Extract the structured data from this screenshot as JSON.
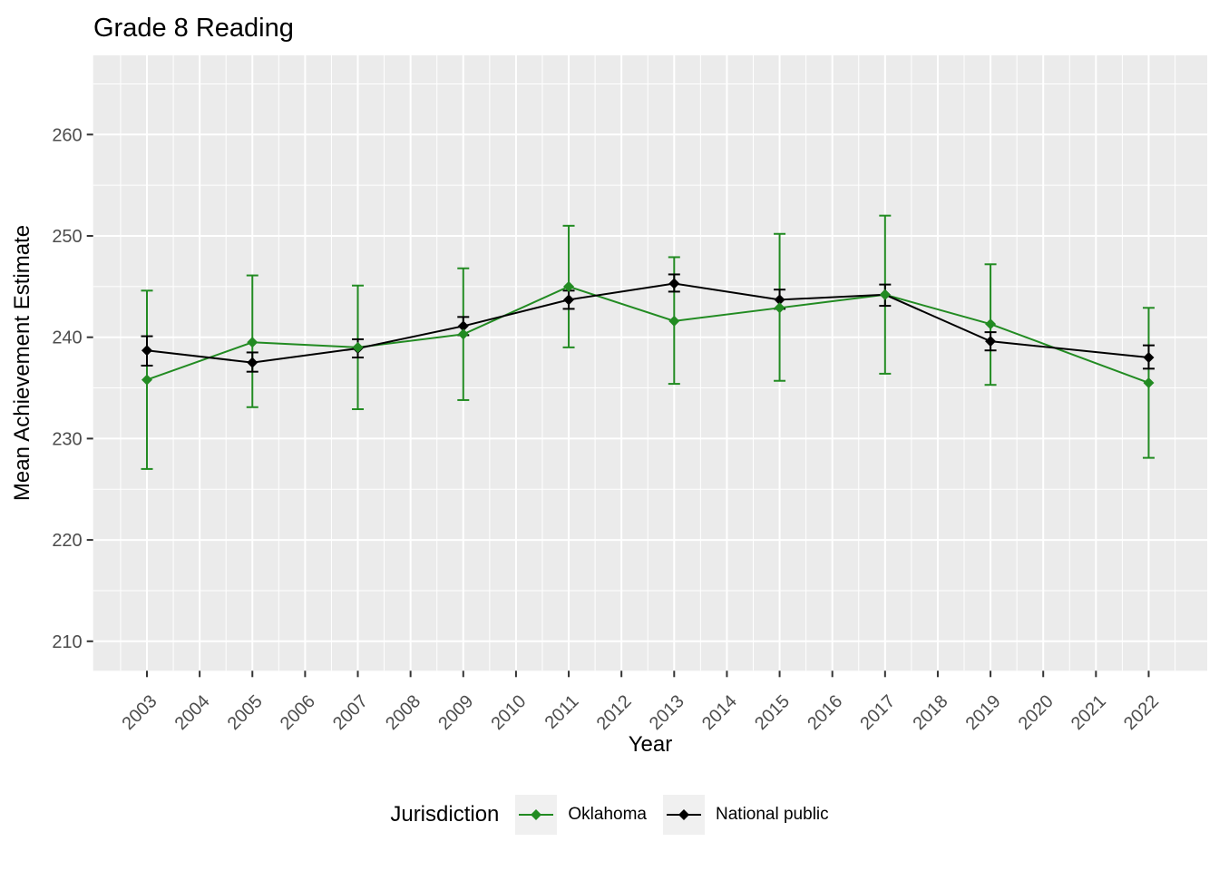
{
  "colors": {
    "oklahoma": "#228B22",
    "national": "#000000",
    "panel_bg": "#EBEBEB",
    "gridline": "#FFFFFF",
    "tick_text": "#4D4D4D",
    "tick_mark": "#333333",
    "legend_key_bg": "#F0F0F0"
  },
  "chart_data": {
    "type": "line",
    "title": "Grade 8 Reading",
    "xlabel": "Year",
    "ylabel": "Mean Achievement Estimate",
    "legend_title": "Jurisdiction",
    "legend_position": "bottom",
    "grid": true,
    "error_bars": true,
    "x_range": [
      2002,
      2023.1
    ],
    "y_range": [
      207,
      268
    ],
    "x_tick_values": [
      2003,
      2004,
      2005,
      2006,
      2007,
      2008,
      2009,
      2010,
      2011,
      2012,
      2013,
      2014,
      2015,
      2016,
      2017,
      2018,
      2019,
      2020,
      2021,
      2022
    ],
    "x_tick_labels": [
      "2003",
      "2004",
      "2005",
      "2006",
      "2007",
      "2008",
      "2009",
      "2010",
      "2011",
      "2012",
      "2013",
      "2014",
      "2015",
      "2016",
      "2017",
      "2018",
      "2019",
      "2020",
      "2021",
      "2022"
    ],
    "y_tick_values": [
      210,
      220,
      230,
      240,
      250,
      260
    ],
    "y_tick_labels": [
      "210",
      "220",
      "230",
      "240",
      "250",
      "260"
    ],
    "x": [
      2003,
      2005,
      2007,
      2009,
      2011,
      2013,
      2015,
      2017,
      2019,
      2022
    ],
    "series": [
      {
        "name": "Oklahoma",
        "color": "#228B22",
        "values": [
          235.8,
          239.5,
          239.0,
          240.3,
          245.0,
          241.6,
          242.9,
          244.2,
          241.3,
          235.5
        ],
        "ci_low": [
          227.0,
          233.1,
          232.9,
          233.8,
          239.0,
          235.4,
          235.7,
          236.4,
          235.3,
          228.1
        ],
        "ci_high": [
          244.6,
          246.1,
          245.1,
          246.8,
          251.0,
          247.9,
          250.2,
          252.0,
          247.2,
          242.9
        ]
      },
      {
        "name": "National public",
        "color": "#000000",
        "values": [
          238.7,
          237.5,
          238.9,
          241.1,
          243.7,
          245.3,
          243.7,
          244.2,
          239.6,
          238.0
        ],
        "ci_low": [
          237.2,
          236.6,
          238.0,
          240.2,
          242.8,
          244.5,
          242.8,
          243.1,
          238.7,
          236.9
        ],
        "ci_high": [
          240.1,
          238.5,
          239.8,
          242.0,
          244.6,
          246.2,
          244.7,
          245.2,
          240.5,
          239.2
        ]
      }
    ]
  }
}
